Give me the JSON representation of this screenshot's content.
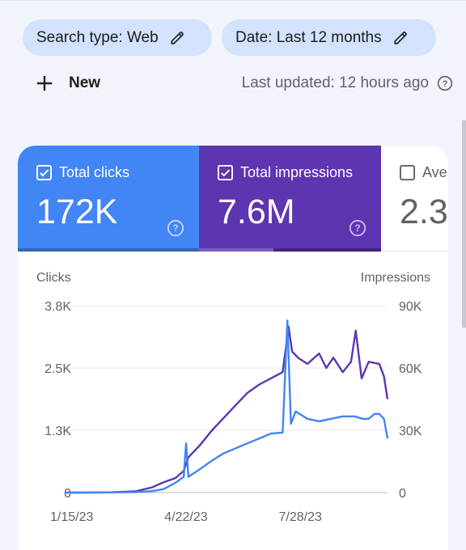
{
  "filters": {
    "search_type": "Search type: Web",
    "date": "Date: Last 12 months"
  },
  "toolbar": {
    "new_label": "New",
    "last_updated": "Last updated: 12 hours ago"
  },
  "metrics": [
    {
      "label": "Total clicks",
      "value": "172K",
      "checked": true,
      "color": "#4285f4"
    },
    {
      "label": "Total impressions",
      "value": "7.6M",
      "checked": true,
      "color": "#5e35b1"
    },
    {
      "label": "Average CTR",
      "value": "2.3",
      "checked": false
    }
  ],
  "chart_data": {
    "type": "line",
    "ylabel_left": "Clicks",
    "ylabel_right": "Impressions",
    "left_ticks": [
      "0",
      "1.3K",
      "2.5K",
      "3.8K"
    ],
    "right_ticks": [
      "0",
      "30K",
      "60K",
      "90K"
    ],
    "ylim_left": [
      0,
      3800
    ],
    "ylim_right": [
      0,
      90000
    ],
    "x_ticks": [
      "1/15/23",
      "4/22/23",
      "7/28/23"
    ],
    "x_range": [
      "2023-01-09",
      "2023-10-10"
    ],
    "series": [
      {
        "name": "Clicks",
        "axis": "left",
        "color": "#4285f4",
        "x": [
          "2023-01-09",
          "2023-01-29",
          "2023-02-18",
          "2023-03-10",
          "2023-03-24",
          "2023-04-03",
          "2023-04-13",
          "2023-04-20",
          "2023-04-22",
          "2023-04-24",
          "2023-05-04",
          "2023-05-14",
          "2023-05-24",
          "2023-06-03",
          "2023-06-13",
          "2023-06-23",
          "2023-07-03",
          "2023-07-13",
          "2023-07-17",
          "2023-07-20",
          "2023-07-24",
          "2023-08-03",
          "2023-08-13",
          "2023-08-23",
          "2023-09-02",
          "2023-09-12",
          "2023-09-19",
          "2023-09-24",
          "2023-09-29",
          "2023-10-03",
          "2023-10-07",
          "2023-10-10"
        ],
        "values": [
          0,
          0,
          5,
          10,
          30,
          70,
          200,
          320,
          1000,
          320,
          480,
          650,
          800,
          900,
          1000,
          1100,
          1200,
          1220,
          3500,
          1400,
          1650,
          1500,
          1450,
          1500,
          1550,
          1550,
          1500,
          1500,
          1600,
          1600,
          1500,
          1100
        ]
      },
      {
        "name": "Impressions",
        "axis": "right",
        "color": "#5e35b1",
        "x": [
          "2023-01-09",
          "2023-01-29",
          "2023-02-18",
          "2023-03-10",
          "2023-03-24",
          "2023-04-03",
          "2023-04-13",
          "2023-04-20",
          "2023-04-24",
          "2023-05-04",
          "2023-05-14",
          "2023-05-24",
          "2023-06-03",
          "2023-06-13",
          "2023-06-23",
          "2023-07-03",
          "2023-07-13",
          "2023-07-18",
          "2023-07-21",
          "2023-07-26",
          "2023-08-03",
          "2023-08-13",
          "2023-08-19",
          "2023-08-25",
          "2023-09-02",
          "2023-09-09",
          "2023-09-13",
          "2023-09-18",
          "2023-09-24",
          "2023-10-03",
          "2023-10-07",
          "2023-10-10"
        ],
        "values": [
          0,
          0,
          150,
          600,
          2500,
          5000,
          7000,
          10500,
          17000,
          23000,
          30000,
          36000,
          42000,
          48000,
          52000,
          55000,
          58000,
          80000,
          68000,
          65000,
          62000,
          67000,
          60000,
          65000,
          58000,
          63000,
          78000,
          55000,
          63000,
          62000,
          56000,
          45000
        ]
      }
    ]
  }
}
